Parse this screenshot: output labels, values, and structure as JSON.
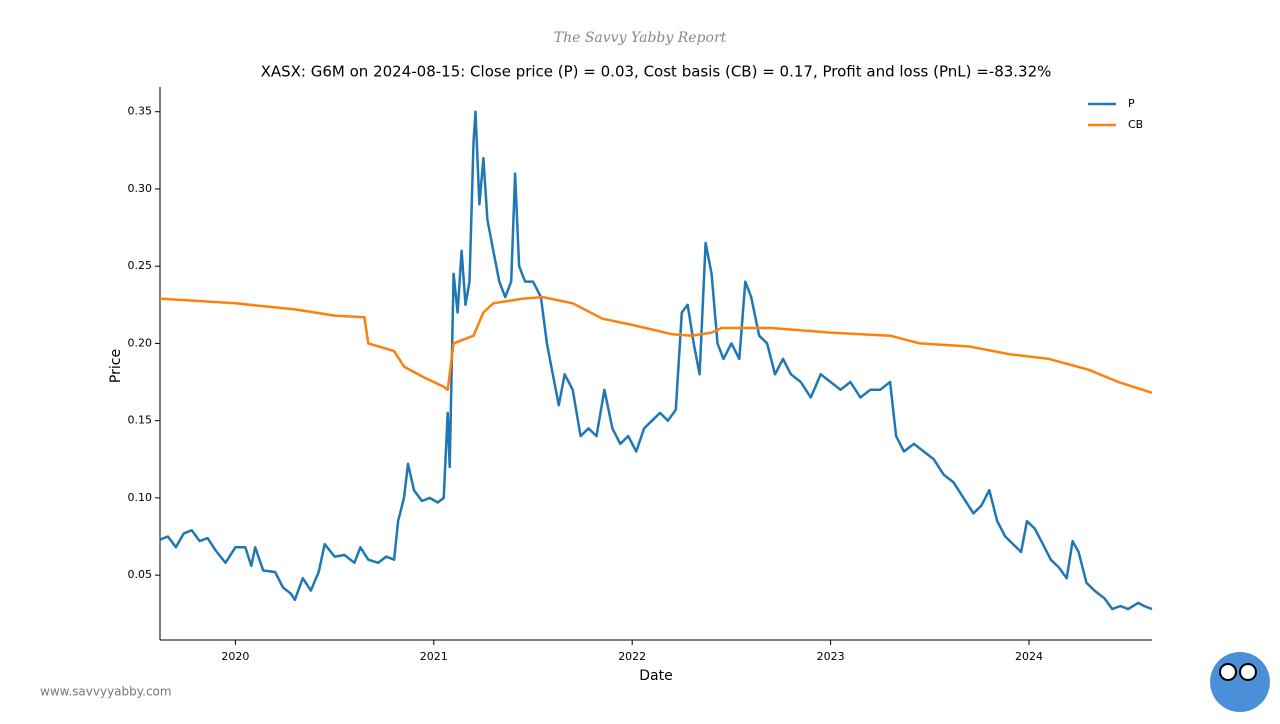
{
  "header": "The Savvy Yabby Report",
  "footer": "www.savvyyabby.com",
  "chart_data": {
    "type": "line",
    "title": "XASX: G6M on 2024-08-15: Close price (P) = 0.03, Cost basis (CB) = 0.17, Profit and loss (PnL) =-83.32%",
    "x_label": "Date",
    "y_label": "Price",
    "xlim": [
      2019.62,
      2024.62
    ],
    "xticks": [
      2020,
      2021,
      2022,
      2023,
      2024
    ],
    "ylim": [
      0.008,
      0.366
    ],
    "yticks": [
      0.05,
      {
        "value": 0.1,
        "label": "0.10"
      },
      0.15,
      {
        "value": 0.2,
        "label": "0.20"
      },
      0.25,
      {
        "value": 0.3,
        "label": "0.30"
      },
      0.35
    ],
    "legend": "upper right",
    "grid": false,
    "series": [
      {
        "name": "P",
        "color": "#1f77b4",
        "x": [
          2019.62,
          2019.66,
          2019.7,
          2019.74,
          2019.78,
          2019.82,
          2019.86,
          2019.9,
          2019.95,
          2020.0,
          2020.05,
          2020.08,
          2020.1,
          2020.14,
          2020.2,
          2020.24,
          2020.28,
          2020.3,
          2020.34,
          2020.38,
          2020.42,
          2020.45,
          2020.5,
          2020.55,
          2020.6,
          2020.63,
          2020.67,
          2020.72,
          2020.76,
          2020.8,
          2020.82,
          2020.85,
          2020.87,
          2020.9,
          2020.94,
          2020.98,
          2021.02,
          2021.05,
          2021.07,
          2021.08,
          2021.1,
          2021.12,
          2021.14,
          2021.16,
          2021.18,
          2021.2,
          2021.21,
          2021.23,
          2021.25,
          2021.27,
          2021.3,
          2021.33,
          2021.36,
          2021.39,
          2021.41,
          2021.43,
          2021.46,
          2021.5,
          2021.54,
          2021.57,
          2021.6,
          2021.63,
          2021.66,
          2021.7,
          2021.74,
          2021.78,
          2021.82,
          2021.86,
          2021.9,
          2021.94,
          2021.98,
          2022.02,
          2022.06,
          2022.1,
          2022.14,
          2022.18,
          2022.22,
          2022.25,
          2022.28,
          2022.31,
          2022.34,
          2022.37,
          2022.4,
          2022.43,
          2022.46,
          2022.5,
          2022.54,
          2022.57,
          2022.6,
          2022.64,
          2022.68,
          2022.72,
          2022.76,
          2022.8,
          2022.85,
          2022.9,
          2022.95,
          2023.0,
          2023.05,
          2023.1,
          2023.15,
          2023.2,
          2023.25,
          2023.3,
          2023.33,
          2023.37,
          2023.42,
          2023.47,
          2023.52,
          2023.57,
          2023.62,
          2023.67,
          2023.72,
          2023.76,
          2023.8,
          2023.84,
          2023.88,
          2023.92,
          2023.96,
          2023.99,
          2024.03,
          2024.07,
          2024.11,
          2024.15,
          2024.19,
          2024.22,
          2024.25,
          2024.29,
          2024.33,
          2024.38,
          2024.42,
          2024.46,
          2024.5,
          2024.55,
          2024.58,
          2024.62
        ],
        "values": [
          0.073,
          0.075,
          0.068,
          0.077,
          0.079,
          0.072,
          0.074,
          0.066,
          0.058,
          0.068,
          0.068,
          0.056,
          0.068,
          0.053,
          0.052,
          0.042,
          0.038,
          0.034,
          0.048,
          0.04,
          0.052,
          0.07,
          0.062,
          0.063,
          0.058,
          0.068,
          0.06,
          0.058,
          0.062,
          0.06,
          0.085,
          0.1,
          0.122,
          0.105,
          0.098,
          0.1,
          0.097,
          0.1,
          0.155,
          0.12,
          0.245,
          0.22,
          0.26,
          0.225,
          0.24,
          0.33,
          0.35,
          0.29,
          0.32,
          0.28,
          0.26,
          0.24,
          0.23,
          0.24,
          0.31,
          0.25,
          0.24,
          0.24,
          0.23,
          0.2,
          0.18,
          0.16,
          0.18,
          0.17,
          0.14,
          0.145,
          0.14,
          0.17,
          0.145,
          0.135,
          0.14,
          0.13,
          0.145,
          0.15,
          0.155,
          0.15,
          0.157,
          0.22,
          0.225,
          0.2,
          0.18,
          0.265,
          0.245,
          0.2,
          0.19,
          0.2,
          0.19,
          0.24,
          0.23,
          0.205,
          0.2,
          0.18,
          0.19,
          0.18,
          0.175,
          0.165,
          0.18,
          0.175,
          0.17,
          0.175,
          0.165,
          0.17,
          0.17,
          0.175,
          0.14,
          0.13,
          0.135,
          0.13,
          0.125,
          0.115,
          0.11,
          0.1,
          0.09,
          0.095,
          0.105,
          0.085,
          0.075,
          0.07,
          0.065,
          0.085,
          0.08,
          0.07,
          0.06,
          0.055,
          0.048,
          0.072,
          0.065,
          0.045,
          0.04,
          0.035,
          0.028,
          0.03,
          0.028,
          0.032,
          0.03,
          0.028
        ]
      },
      {
        "name": "CB",
        "color": "#ff7f0e",
        "x": [
          2019.62,
          2020.0,
          2020.3,
          2020.5,
          2020.65,
          2020.67,
          2020.8,
          2020.85,
          2020.95,
          2021.05,
          2021.07,
          2021.1,
          2021.2,
          2021.25,
          2021.3,
          2021.45,
          2021.55,
          2021.7,
          2021.85,
          2022.0,
          2022.2,
          2022.3,
          2022.4,
          2022.45,
          2022.7,
          2023.0,
          2023.3,
          2023.45,
          2023.7,
          2023.9,
          2024.1,
          2024.3,
          2024.45,
          2024.62
        ],
        "values": [
          0.229,
          0.226,
          0.222,
          0.218,
          0.217,
          0.2,
          0.195,
          0.185,
          0.178,
          0.172,
          0.17,
          0.2,
          0.205,
          0.22,
          0.226,
          0.229,
          0.23,
          0.226,
          0.216,
          0.212,
          0.206,
          0.205,
          0.207,
          0.21,
          0.21,
          0.207,
          0.205,
          0.2,
          0.198,
          0.193,
          0.19,
          0.183,
          0.175,
          0.168
        ]
      }
    ]
  }
}
